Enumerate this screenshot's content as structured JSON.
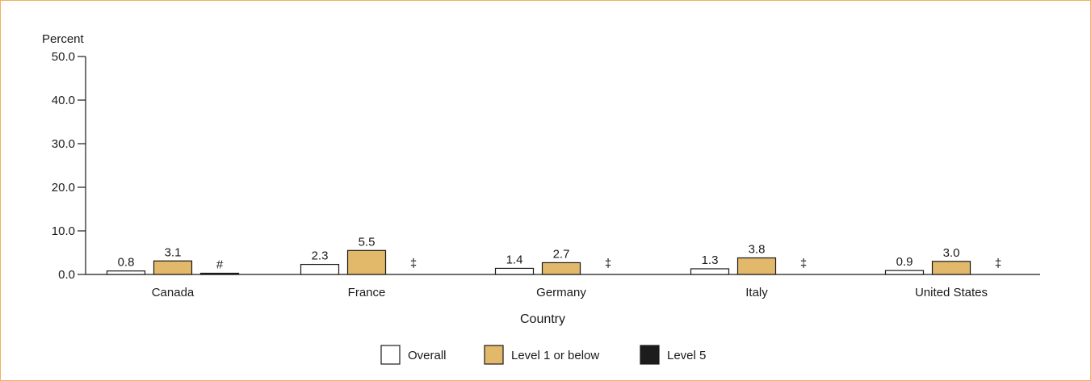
{
  "chart_data": {
    "type": "bar",
    "ylabel": "Percent",
    "xlabel": "Country",
    "ylim": [
      0,
      50
    ],
    "yticks": [
      "0.0",
      "10.0",
      "20.0",
      "30.0",
      "40.0",
      "50.0"
    ],
    "categories": [
      "Canada",
      "France",
      "Germany",
      "Italy",
      "United States"
    ],
    "series": [
      {
        "name": "Overall",
        "color": "#ffffff",
        "values": [
          0.8,
          2.3,
          1.4,
          1.3,
          0.9
        ],
        "labels": [
          "0.8",
          "2.3",
          "1.4",
          "1.3",
          "0.9"
        ]
      },
      {
        "name": "Level 1 or below",
        "color": "#e2b86a",
        "values": [
          3.1,
          5.5,
          2.7,
          3.8,
          3.0
        ],
        "labels": [
          "3.1",
          "5.5",
          "2.7",
          "3.8",
          "3.0"
        ]
      },
      {
        "name": "Level 5",
        "color": "#1c1c1c",
        "values": [
          0.2,
          null,
          null,
          null,
          null
        ],
        "labels": [
          "#",
          "‡",
          "‡",
          "‡",
          "‡"
        ]
      }
    ],
    "legend_position": "bottom-center",
    "grid": false
  }
}
